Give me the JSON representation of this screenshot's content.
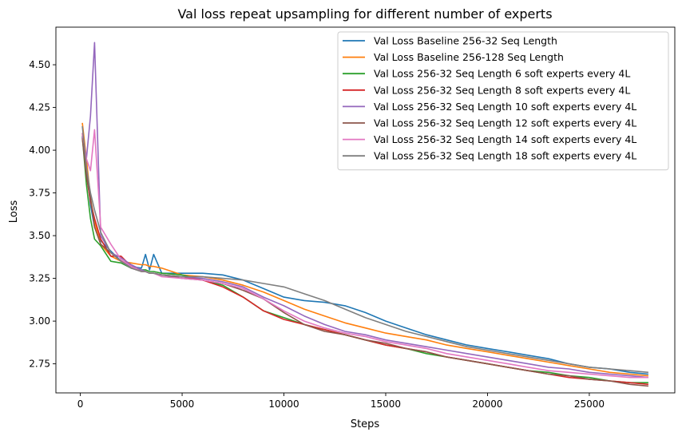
{
  "chart_data": {
    "type": "line",
    "title": "Val loss repeat upsampling for different number of experts",
    "xlabel": "Steps",
    "ylabel": "Loss",
    "xlim": [
      -1200,
      29200
    ],
    "ylim": [
      2.58,
      4.72
    ],
    "xticks": [
      0,
      5000,
      10000,
      15000,
      20000,
      25000
    ],
    "xtick_labels": [
      "0",
      "5000",
      "10000",
      "15000",
      "20000",
      "25000"
    ],
    "yticks": [
      2.75,
      3.0,
      3.25,
      3.5,
      3.75,
      4.0,
      4.25,
      4.5
    ],
    "ytick_labels": [
      "2.75",
      "3.00",
      "3.25",
      "3.50",
      "3.75",
      "4.00",
      "4.25",
      "4.50"
    ],
    "grid": false,
    "legend_position": "top-right",
    "x": [
      100,
      300,
      500,
      700,
      1000,
      1500,
      2000,
      2500,
      3000,
      3200,
      3400,
      3600,
      4000,
      5000,
      6000,
      7000,
      8000,
      9000,
      10000,
      11000,
      12000,
      13000,
      14000,
      15000,
      16000,
      17000,
      18000,
      19000,
      20000,
      21000,
      22000,
      23000,
      24000,
      25000,
      26000,
      27000,
      27900
    ],
    "series": [
      {
        "name": "Val Loss Baseline 256-32 Seq Length",
        "color": "#1f77b4",
        "values": [
          4.08,
          3.9,
          3.68,
          3.55,
          3.47,
          3.41,
          3.35,
          3.32,
          3.31,
          3.39,
          3.3,
          3.39,
          3.28,
          3.28,
          3.28,
          3.27,
          3.24,
          3.19,
          3.14,
          3.12,
          3.11,
          3.09,
          3.05,
          3.0,
          2.96,
          2.92,
          2.89,
          2.86,
          2.84,
          2.82,
          2.8,
          2.78,
          2.75,
          2.73,
          2.72,
          2.7,
          2.69
        ]
      },
      {
        "name": "Val Loss Baseline 256-128 Seq Length",
        "color": "#ff7f0e",
        "values": [
          4.16,
          3.95,
          3.72,
          3.58,
          3.45,
          3.38,
          3.35,
          3.34,
          3.33,
          3.33,
          3.32,
          3.32,
          3.31,
          3.27,
          3.26,
          3.24,
          3.21,
          3.17,
          3.12,
          3.07,
          3.03,
          2.99,
          2.96,
          2.93,
          2.91,
          2.89,
          2.86,
          2.84,
          2.82,
          2.8,
          2.78,
          2.76,
          2.74,
          2.72,
          2.7,
          2.69,
          2.68
        ]
      },
      {
        "name": "Val Loss 256-32 Seq Length 6 soft experts every 4L",
        "color": "#2ca02c",
        "values": [
          4.08,
          3.8,
          3.6,
          3.48,
          3.44,
          3.35,
          3.34,
          3.31,
          3.3,
          3.3,
          3.29,
          3.29,
          3.28,
          3.27,
          3.24,
          3.21,
          3.14,
          3.06,
          3.02,
          2.98,
          2.95,
          2.92,
          2.89,
          2.86,
          2.84,
          2.81,
          2.79,
          2.77,
          2.75,
          2.73,
          2.71,
          2.7,
          2.68,
          2.67,
          2.65,
          2.64,
          2.64
        ]
      },
      {
        "name": "Val Loss 256-32 Seq Length 8 soft experts every 4L",
        "color": "#d62728",
        "values": [
          4.1,
          3.85,
          3.7,
          3.6,
          3.48,
          3.38,
          3.38,
          3.32,
          3.29,
          3.29,
          3.28,
          3.28,
          3.27,
          3.26,
          3.24,
          3.2,
          3.14,
          3.06,
          3.01,
          2.98,
          2.95,
          2.92,
          2.89,
          2.86,
          2.84,
          2.82,
          2.79,
          2.77,
          2.75,
          2.73,
          2.71,
          2.69,
          2.67,
          2.66,
          2.65,
          2.64,
          2.63
        ]
      },
      {
        "name": "Val Loss 256-32 Seq Length 10 soft experts every 4L",
        "color": "#9467bd",
        "values": [
          4.08,
          3.95,
          4.2,
          4.63,
          3.5,
          3.4,
          3.37,
          3.33,
          3.3,
          3.29,
          3.28,
          3.28,
          3.27,
          3.26,
          3.25,
          3.23,
          3.2,
          3.14,
          3.09,
          3.03,
          2.98,
          2.94,
          2.92,
          2.89,
          2.87,
          2.85,
          2.83,
          2.81,
          2.79,
          2.77,
          2.75,
          2.73,
          2.72,
          2.7,
          2.69,
          2.68,
          2.67
        ]
      },
      {
        "name": "Val Loss 256-32 Seq Length 12 soft experts every 4L",
        "color": "#8c564b",
        "values": [
          4.07,
          3.85,
          3.72,
          3.55,
          3.45,
          3.4,
          3.35,
          3.31,
          3.29,
          3.29,
          3.28,
          3.28,
          3.27,
          3.25,
          3.24,
          3.22,
          3.18,
          3.13,
          3.05,
          2.98,
          2.94,
          2.92,
          2.89,
          2.87,
          2.84,
          2.82,
          2.79,
          2.77,
          2.75,
          2.73,
          2.71,
          2.69,
          2.68,
          2.66,
          2.65,
          2.63,
          2.62
        ]
      },
      {
        "name": "Val Loss 256-32 Seq Length 14 soft experts every 4L",
        "color": "#e377c2",
        "values": [
          4.1,
          3.95,
          3.88,
          4.12,
          3.55,
          3.45,
          3.36,
          3.32,
          3.29,
          3.29,
          3.28,
          3.28,
          3.26,
          3.25,
          3.24,
          3.22,
          3.19,
          3.13,
          3.06,
          3.0,
          2.96,
          2.93,
          2.91,
          2.88,
          2.86,
          2.84,
          2.81,
          2.79,
          2.77,
          2.75,
          2.73,
          2.71,
          2.7,
          2.69,
          2.68,
          2.67,
          2.67
        ]
      },
      {
        "name": "Val Loss 256-32 Seq Length 18 soft experts every 4L",
        "color": "#7f7f7f",
        "values": [
          4.14,
          3.9,
          3.75,
          3.65,
          3.52,
          3.4,
          3.35,
          3.31,
          3.29,
          3.29,
          3.28,
          3.28,
          3.27,
          3.26,
          3.26,
          3.25,
          3.24,
          3.22,
          3.2,
          3.16,
          3.12,
          3.07,
          3.02,
          2.98,
          2.94,
          2.91,
          2.88,
          2.85,
          2.83,
          2.81,
          2.79,
          2.77,
          2.75,
          2.73,
          2.72,
          2.71,
          2.7
        ]
      }
    ]
  }
}
